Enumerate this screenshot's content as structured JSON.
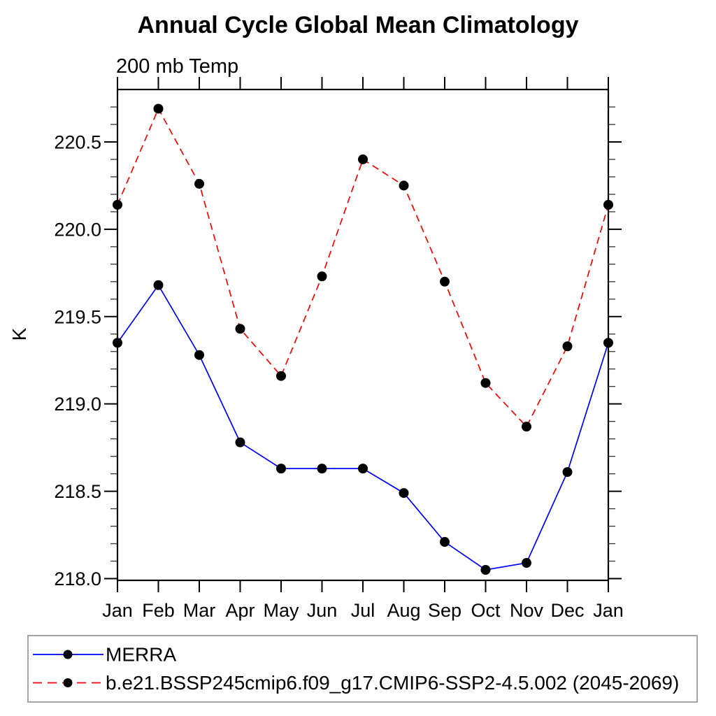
{
  "chart_data": {
    "type": "line",
    "title": "Annual Cycle Global Mean Climatology",
    "subtitle": "200 mb Temp",
    "ylabel": "K",
    "xlabel": "",
    "categories": [
      "Jan",
      "Feb",
      "Mar",
      "Apr",
      "May",
      "Jun",
      "Jul",
      "Aug",
      "Sep",
      "Oct",
      "Nov",
      "Dec",
      "Jan"
    ],
    "ylim": [
      217.99,
      220.8
    ],
    "grid": false,
    "legend_position": "bottom-left-box",
    "y_axis": {
      "major_tick_values": [
        218.0,
        218.5,
        219.0,
        219.5,
        220.0,
        220.5
      ],
      "major_tick_labels": [
        "218.0",
        "218.5",
        "219.0",
        "219.5",
        "220.0",
        "220.5"
      ],
      "minor_tick_step": 0.1,
      "minor_tick_min": 218.1,
      "minor_tick_max": 220.7
    },
    "series": [
      {
        "name": "MERRA",
        "color": "#0000ff",
        "line_style": "solid",
        "marker": "filled-circle",
        "marker_color": "#000000",
        "values": [
          219.35,
          219.68,
          219.28,
          218.78,
          218.63,
          218.63,
          218.63,
          218.49,
          218.21,
          218.05,
          218.09,
          218.61,
          219.35
        ]
      },
      {
        "name": "b.e21.BSSP245cmip6.f09_g17.CMIP6-SSP2-4.5.002 (2045-2069)",
        "color": "#ff0000",
        "line_style": "dashed",
        "marker": "filled-circle",
        "marker_color": "#000000",
        "values": [
          220.14,
          220.69,
          220.26,
          219.43,
          219.16,
          219.73,
          220.4,
          220.25,
          219.7,
          219.12,
          218.87,
          219.33,
          220.14
        ]
      }
    ]
  }
}
